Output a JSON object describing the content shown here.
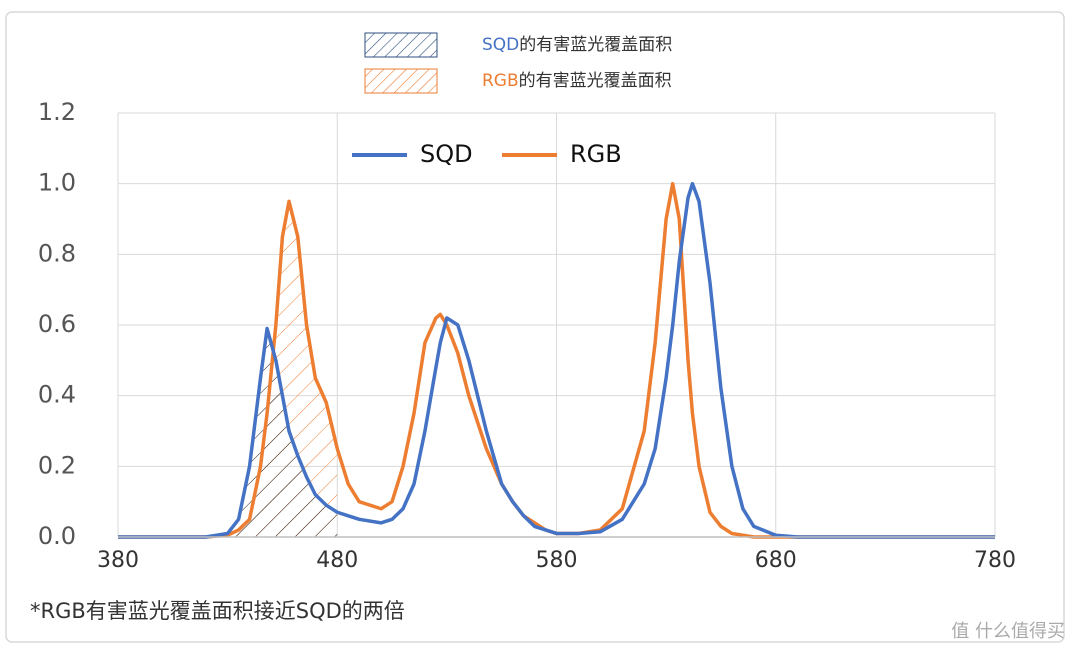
{
  "chart_data": {
    "type": "line",
    "area_legend": [
      {
        "name": "SQD",
        "text": "的有害蓝光覆盖面积",
        "color": "#4472c4"
      },
      {
        "name": "RGB",
        "text": "的有害蓝光覆盖面积",
        "color": "#ed7d31"
      }
    ],
    "x": [
      380,
      400,
      420,
      430,
      435,
      440,
      445,
      448,
      452,
      455,
      458,
      462,
      466,
      470,
      475,
      480,
      485,
      490,
      500,
      505,
      510,
      515,
      520,
      525,
      527,
      530,
      535,
      540,
      548,
      555,
      560,
      565,
      570,
      575,
      580,
      590,
      600,
      610,
      620,
      625,
      630,
      633,
      636,
      640,
      642,
      645,
      650,
      655,
      660,
      665,
      670,
      680,
      690,
      780
    ],
    "series": [
      {
        "name": "SQD",
        "color": "#4472c4",
        "values": [
          0,
          0,
          0,
          0.01,
          0.05,
          0.2,
          0.45,
          0.59,
          0.5,
          0.4,
          0.3,
          0.23,
          0.17,
          0.12,
          0.09,
          0.07,
          0.06,
          0.05,
          0.04,
          0.05,
          0.08,
          0.15,
          0.3,
          0.48,
          0.55,
          0.62,
          0.6,
          0.5,
          0.3,
          0.15,
          0.1,
          0.06,
          0.03,
          0.02,
          0.01,
          0.01,
          0.015,
          0.05,
          0.15,
          0.25,
          0.45,
          0.6,
          0.78,
          0.96,
          1.0,
          0.95,
          0.72,
          0.42,
          0.2,
          0.08,
          0.03,
          0.005,
          0,
          0
        ]
      },
      {
        "name": "RGB",
        "color": "#ed7d31",
        "values": [
          0,
          0,
          0,
          0.005,
          0.02,
          0.05,
          0.2,
          0.35,
          0.6,
          0.85,
          0.95,
          0.85,
          0.6,
          0.45,
          0.38,
          0.25,
          0.15,
          0.1,
          0.08,
          0.1,
          0.2,
          0.35,
          0.55,
          0.62,
          0.63,
          0.6,
          0.52,
          0.4,
          0.25,
          0.15,
          0.1,
          0.06,
          0.04,
          0.02,
          0.01,
          0.01,
          0.02,
          0.08,
          0.3,
          0.55,
          0.9,
          1.0,
          0.9,
          0.5,
          0.35,
          0.2,
          0.07,
          0.03,
          0.01,
          0.005,
          0,
          0,
          0,
          0
        ]
      }
    ],
    "xlim": [
      380,
      780
    ],
    "xticks": [
      380,
      480,
      580,
      680,
      780
    ],
    "ylim": [
      0,
      1.2
    ],
    "yticks": [
      {
        "value": 0,
        "label": "0.0"
      },
      {
        "value": 0.2,
        "label": "0.2"
      },
      {
        "value": 0.4,
        "label": "0.4"
      },
      {
        "value": 0.6,
        "label": "0.6"
      },
      {
        "value": 0.8,
        "label": "0.8"
      },
      {
        "value": 1.0,
        "label": "1.0"
      },
      {
        "value": 1.2,
        "label": "1.2"
      }
    ],
    "grid": true,
    "footnote": "*RGB有害蓝光覆盖面积接近SQD的两倍"
  },
  "watermark": "值 什么值得买"
}
